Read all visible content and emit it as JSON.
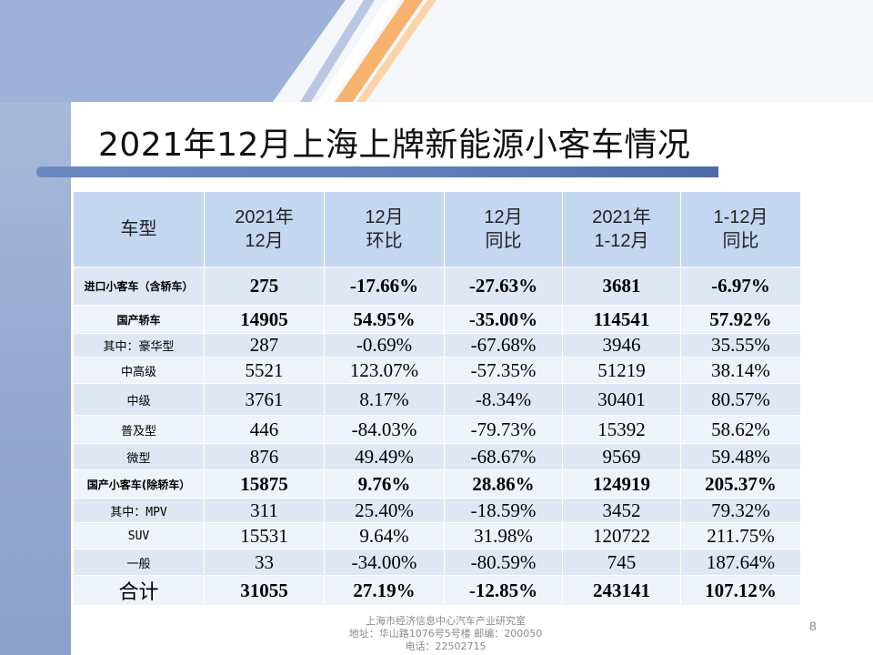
{
  "slide": {
    "title": "2021年12月上海上牌新能源小客车情况",
    "page_number": "8",
    "footer": {
      "line1": "上海市经济信息中心汽车产业研究室",
      "line2": "地址：华山路1076号5号楼    邮编：200050",
      "line3": "电话：22502715"
    }
  },
  "table": {
    "headers": [
      [
        "车型"
      ],
      [
        "2021年",
        "12月"
      ],
      [
        "12月",
        "环比"
      ],
      [
        "12月",
        "同比"
      ],
      [
        "2021年",
        "1-12月"
      ],
      [
        "1-12月",
        "同比"
      ]
    ],
    "rows": [
      {
        "category": "进口小客车（含轿车）",
        "values": [
          "275",
          "-17.66%",
          "-27.63%",
          "3681",
          "-6.97%"
        ],
        "bold": true
      },
      {
        "category": "国产轿车",
        "values": [
          "14905",
          "54.95%",
          "-35.00%",
          "114541",
          "57.92%"
        ],
        "bold": true
      },
      {
        "category": "其中：豪华型",
        "values": [
          "287",
          "-0.69%",
          "-67.68%",
          "3946",
          "35.55%"
        ],
        "bold": false
      },
      {
        "category": "中高级",
        "values": [
          "5521",
          "123.07%",
          "-57.35%",
          "51219",
          "38.14%"
        ],
        "bold": false
      },
      {
        "category": "中级",
        "values": [
          "3761",
          "8.17%",
          "-8.34%",
          "30401",
          "80.57%"
        ],
        "bold": false
      },
      {
        "category": "普及型",
        "values": [
          "446",
          "-84.03%",
          "-79.73%",
          "15392",
          "58.62%"
        ],
        "bold": false
      },
      {
        "category": "微型",
        "values": [
          "876",
          "49.49%",
          "-68.67%",
          "9569",
          "59.48%"
        ],
        "bold": false
      },
      {
        "category": "国产小客车(除轿车）",
        "values": [
          "15875",
          "9.76%",
          "28.86%",
          "124919",
          "205.37%"
        ],
        "bold": true
      },
      {
        "category": "其中：MPV",
        "values": [
          "311",
          "25.40%",
          "-18.59%",
          "3452",
          "79.32%"
        ],
        "bold": false
      },
      {
        "category": "SUV",
        "values": [
          "15531",
          "9.64%",
          "31.98%",
          "120722",
          "211.75%"
        ],
        "bold": false
      },
      {
        "category": "一般",
        "values": [
          "33",
          "-34.00%",
          "-80.59%",
          "745",
          "187.64%"
        ],
        "bold": false
      },
      {
        "category": "合计",
        "values": [
          "31055",
          "27.19%",
          "-12.85%",
          "243141",
          "107.12%"
        ],
        "bold": true,
        "total": true
      }
    ]
  },
  "colors": {
    "header_bg": "#c4d6f0",
    "row_odd_bg": "#e0e7f4",
    "row_even_bg": "#eef2f9",
    "left_band": "#93a9cf",
    "accent_orange": "#f2a65a"
  }
}
